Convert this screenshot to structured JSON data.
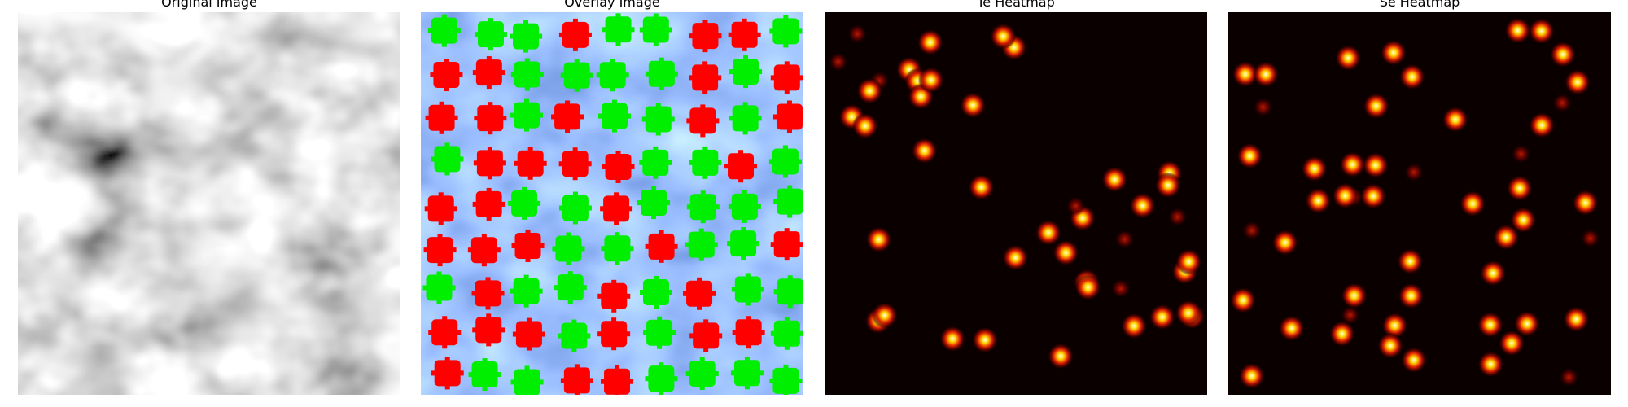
{
  "panels": [
    {
      "title": "Original Image"
    },
    {
      "title": "Overlay Image"
    },
    {
      "title": "Te Heatmap"
    },
    {
      "title": "Se Heatmap"
    }
  ]
}
